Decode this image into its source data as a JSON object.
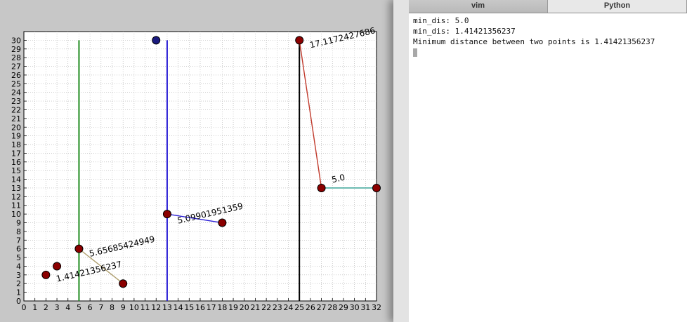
{
  "terminal": {
    "tabs": [
      "vim",
      "Python"
    ],
    "lines": [
      "min_dis: 5.0",
      "min_dis: 1.41421356237",
      "Minimum distance between two points is 1.41421356237"
    ]
  },
  "chart_data": {
    "type": "scatter",
    "xlim": [
      0,
      32
    ],
    "ylim": [
      0,
      31
    ],
    "xticks": [
      0,
      1,
      2,
      3,
      4,
      5,
      6,
      7,
      8,
      9,
      10,
      11,
      12,
      13,
      14,
      15,
      16,
      17,
      18,
      19,
      20,
      21,
      22,
      23,
      24,
      25,
      26,
      27,
      28,
      29,
      30,
      31,
      32
    ],
    "yticks": [
      0,
      1,
      2,
      3,
      4,
      5,
      6,
      7,
      8,
      9,
      10,
      11,
      12,
      13,
      14,
      15,
      16,
      17,
      18,
      19,
      20,
      21,
      22,
      23,
      24,
      25,
      26,
      27,
      28,
      29,
      30
    ],
    "grid": true,
    "points": [
      {
        "x": 2,
        "y": 3,
        "color": "#8b0000"
      },
      {
        "x": 3,
        "y": 4,
        "color": "#8b0000"
      },
      {
        "x": 5,
        "y": 6,
        "color": "#8b0000"
      },
      {
        "x": 9,
        "y": 2,
        "color": "#8b0000"
      },
      {
        "x": 12,
        "y": 30,
        "color": "#1a1a7e"
      },
      {
        "x": 13,
        "y": 10,
        "color": "#8b0000"
      },
      {
        "x": 18,
        "y": 9,
        "color": "#8b0000"
      },
      {
        "x": 25,
        "y": 30,
        "color": "#8b0000"
      },
      {
        "x": 27,
        "y": 13,
        "color": "#8b0000"
      },
      {
        "x": 32,
        "y": 13,
        "color": "#8b0000"
      }
    ],
    "vertical_lines": [
      {
        "x": 5,
        "color": "#1e8a1e"
      },
      {
        "x": 13,
        "color": "#2b1fd6"
      },
      {
        "x": 25,
        "color": "#000000"
      }
    ],
    "segments": [
      {
        "x1": 5,
        "y1": 6,
        "x2": 9,
        "y2": 2,
        "color": "#b0a070"
      },
      {
        "x1": 13,
        "y1": 10,
        "x2": 18,
        "y2": 9,
        "color": "#2b1fd6"
      },
      {
        "x1": 25,
        "y1": 30,
        "x2": 27,
        "y2": 13,
        "color": "#c0392b"
      },
      {
        "x1": 27,
        "y1": 13,
        "x2": 32,
        "y2": 13,
        "color": "#2a9d8f"
      }
    ],
    "annotations": [
      {
        "text": "1.41421356237",
        "x": 3,
        "y": 2.2,
        "angle": -13
      },
      {
        "text": "5.65685424949",
        "x": 6,
        "y": 5.1,
        "angle": -13
      },
      {
        "text": "5.09901951359",
        "x": 14,
        "y": 8.9,
        "angle": -13
      },
      {
        "text": "5.0",
        "x": 28,
        "y": 13.6,
        "angle": -13
      },
      {
        "text": "17.1172427686",
        "x": 26,
        "y": 29.1,
        "angle": -13
      }
    ]
  }
}
